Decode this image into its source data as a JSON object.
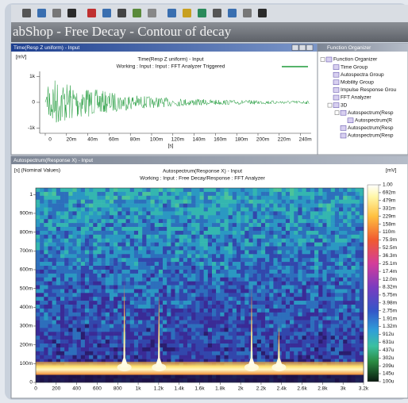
{
  "app": {
    "title": "abShop - Free Decay -  Contour of decay"
  },
  "time_window": {
    "title": "Time(Resp Z uniform) - Input",
    "chart": {
      "type": "line",
      "unit": "[mV]",
      "title": "Time(Resp Z uniform) - Input",
      "subtitle": "Working : Input : Input : FFT Analyzer Triggered",
      "xlabel": "[s]",
      "color": "#1f9a3a",
      "xlim": [
        0,
        0.25
      ],
      "xticks": [
        0,
        {
          "value": 0.02,
          "label": "20m"
        },
        {
          "value": 0.04,
          "label": "40m"
        },
        {
          "value": 0.06,
          "label": "60m"
        },
        {
          "value": 0.08,
          "label": "80m"
        },
        {
          "value": 0.1,
          "label": "100m"
        },
        {
          "value": 0.12,
          "label": "120m"
        },
        {
          "value": 0.14,
          "label": "140m"
        },
        {
          "value": 0.16,
          "label": "160m"
        },
        {
          "value": 0.18,
          "label": "180m"
        },
        {
          "value": 0.2,
          "label": "200m"
        },
        {
          "value": 0.22,
          "label": "220m"
        },
        {
          "value": 0.24,
          "label": "240m"
        }
      ],
      "ylim": [
        -1200,
        1200
      ],
      "yticks": [
        {
          "value": 1000,
          "label": "1k"
        },
        0,
        {
          "value": -1000,
          "label": "-1k"
        }
      ]
    }
  },
  "organizer": {
    "title": "Function Organizer",
    "tree": [
      {
        "label": "Function Organizer",
        "children": [
          {
            "label": "Time Group"
          },
          {
            "label": "Autospectra Group"
          },
          {
            "label": "Mobility Group"
          },
          {
            "label": "Impulse Response Grou"
          },
          {
            "label": "FFT Analyzer"
          },
          {
            "label": "3D",
            "children": [
              {
                "label": "Autospectrum(Resp",
                "children": [
                  {
                    "label": "Autospectrum(R"
                  }
                ]
              },
              {
                "label": "Autospectrum(Resp"
              },
              {
                "label": "Autospectrum(Resp"
              }
            ]
          }
        ]
      }
    ]
  },
  "spectrum_window": {
    "title": "Autospectrum(Response X) - Input",
    "chart": {
      "type": "contour",
      "ylabel": "[s] (Nominal Values)",
      "title": "Autospectrum(Response X) - Input",
      "subtitle": "Working : Input : Free Decay/Response : FFT Analyzer",
      "xlim": [
        0,
        3200
      ],
      "xticks": [
        0,
        200,
        400,
        600,
        800,
        {
          "value": 1000,
          "label": "1k"
        },
        {
          "value": 1200,
          "label": "1.2k"
        },
        {
          "value": 1400,
          "label": "1.4k"
        },
        {
          "value": 1600,
          "label": "1.6k"
        },
        {
          "value": 1800,
          "label": "1.8k"
        },
        {
          "value": 2000,
          "label": "2k"
        },
        {
          "value": 2200,
          "label": "2.2k"
        },
        {
          "value": 2400,
          "label": "2.4k"
        },
        {
          "value": 2600,
          "label": "2.6k"
        },
        {
          "value": 2800,
          "label": "2.8k"
        },
        {
          "value": 3000,
          "label": "3k"
        },
        {
          "value": 3200,
          "label": "3.2k"
        }
      ],
      "ylim": [
        0,
        1.035
      ],
      "yticks": [
        1,
        {
          "value": 0.9,
          "label": "900m"
        },
        {
          "value": 0.8,
          "label": "800m"
        },
        {
          "value": 0.7,
          "label": "700m"
        },
        {
          "value": 0.6,
          "label": "600m"
        },
        {
          "value": 0.5,
          "label": "500m"
        },
        {
          "value": 0.4,
          "label": "400m"
        },
        {
          "value": 0.3,
          "label": "300m"
        },
        {
          "value": 0.2,
          "label": "200m"
        },
        {
          "value": 0.1,
          "label": "100m"
        },
        0
      ],
      "colorbar": {
        "unit": "[mV]",
        "log_scale": true,
        "lim": [
          0.0001,
          1
        ],
        "ticks": [
          {
            "value": 1,
            "label": "1.00"
          },
          {
            "value": 0.692,
            "label": "692m"
          },
          {
            "value": 0.479,
            "label": "479m"
          },
          {
            "value": 0.331,
            "label": "331m"
          },
          {
            "value": 0.229,
            "label": "229m"
          },
          {
            "value": 0.158,
            "label": "158m"
          },
          {
            "value": 0.11,
            "label": "110m"
          },
          {
            "value": 0.0759,
            "label": "75.9m"
          },
          {
            "value": 0.0525,
            "label": "52.5m"
          },
          {
            "value": 0.0363,
            "label": "36.3m"
          },
          {
            "value": 0.0251,
            "label": "25.1m"
          },
          {
            "value": 0.0174,
            "label": "17.4m"
          },
          {
            "value": 0.012,
            "label": "12.0m"
          },
          {
            "value": 0.00832,
            "label": "8.32m"
          },
          {
            "value": 0.00575,
            "label": "5.75m"
          },
          {
            "value": 0.00398,
            "label": "3.98m"
          },
          {
            "value": 0.00275,
            "label": "2.75m"
          },
          {
            "value": 0.00191,
            "label": "1.91m"
          },
          {
            "value": 0.00132,
            "label": "1.32m"
          },
          {
            "value": 0.000912,
            "label": "912u"
          },
          {
            "value": 0.000631,
            "label": "631u"
          },
          {
            "value": 0.000437,
            "label": "437u"
          },
          {
            "value": 0.000302,
            "label": "302u"
          },
          {
            "value": 0.000209,
            "label": "209u"
          },
          {
            "value": 0.000145,
            "label": "145u"
          },
          {
            "value": 0.0001,
            "label": "100u"
          }
        ]
      },
      "peaks": {
        "x": [
          865,
          1203,
          2107,
          2374
        ],
        "values": [
          0.58,
          0.52,
          0.55,
          0.33
        ]
      }
    }
  }
}
